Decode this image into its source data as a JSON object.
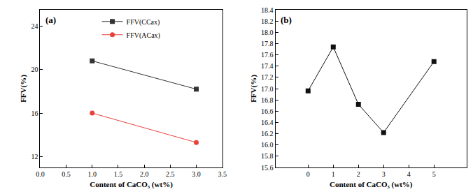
{
  "chart_data": [
    {
      "type": "line",
      "annotations": [
        "(a)"
      ],
      "x_label": "Content of CaCO₃ (wt%)",
      "y_label": "FFV(%)",
      "xlim": [
        0,
        3.5
      ],
      "xticks": [
        {
          "value": 0,
          "label": "0.0"
        },
        {
          "value": 0.5,
          "label": "0.5"
        },
        {
          "value": 1,
          "label": "1.0"
        },
        {
          "value": 1.5,
          "label": "1.5"
        },
        {
          "value": 2,
          "label": "2.0"
        },
        {
          "value": 2.5,
          "label": "2.5"
        },
        {
          "value": 3,
          "label": "3.0"
        },
        {
          "value": 3.5,
          "label": "3.5"
        }
      ],
      "ylim": [
        11,
        25.5
      ],
      "yticks": [
        12,
        16,
        20,
        24
      ],
      "grid": false,
      "legend": "top",
      "x": [
        1,
        3
      ],
      "series": [
        {
          "name": "FFV(CCax)",
          "color": "#333333",
          "marker": "square",
          "line_style": "solid",
          "values": [
            20.8,
            18.2
          ]
        },
        {
          "name": "FFV(ACax)",
          "color": "#e8413c",
          "marker": "circle",
          "line_style": "solid",
          "values": [
            16.0,
            13.3
          ]
        }
      ]
    },
    {
      "type": "line",
      "annotations": [
        "(b)"
      ],
      "x_label": "Content of CaCO₃ (wt%)",
      "y_label": "FFV(%)",
      "xlim": [
        -1.3,
        6.3
      ],
      "xticks": [
        0,
        1,
        2,
        3,
        4,
        5
      ],
      "ylim": [
        15.6,
        18.4
      ],
      "yticks": [
        {
          "value": 15.6,
          "label": "15.6"
        },
        {
          "value": 15.8,
          "label": "15.8"
        },
        {
          "value": 16.0,
          "label": "16.0"
        },
        {
          "value": 16.2,
          "label": "16.2"
        },
        {
          "value": 16.4,
          "label": "16.4"
        },
        {
          "value": 16.6,
          "label": "16.6"
        },
        {
          "value": 16.8,
          "label": "16.8"
        },
        {
          "value": 17.0,
          "label": "17.0"
        },
        {
          "value": 17.2,
          "label": "17.2"
        },
        {
          "value": 17.4,
          "label": "17.4"
        },
        {
          "value": 17.6,
          "label": "17.6"
        },
        {
          "value": 17.8,
          "label": "17.8"
        },
        {
          "value": 18.0,
          "label": "18.0"
        },
        {
          "value": 18.2,
          "label": "18.2"
        },
        {
          "value": 18.4,
          "label": "18.4"
        }
      ],
      "grid": false,
      "x": [
        0,
        1,
        2,
        3,
        5
      ],
      "series": [
        {
          "color": "#111111",
          "marker": "square",
          "line_style": "solid",
          "values": [
            16.96,
            17.74,
            16.72,
            16.22,
            17.48
          ]
        }
      ]
    }
  ]
}
